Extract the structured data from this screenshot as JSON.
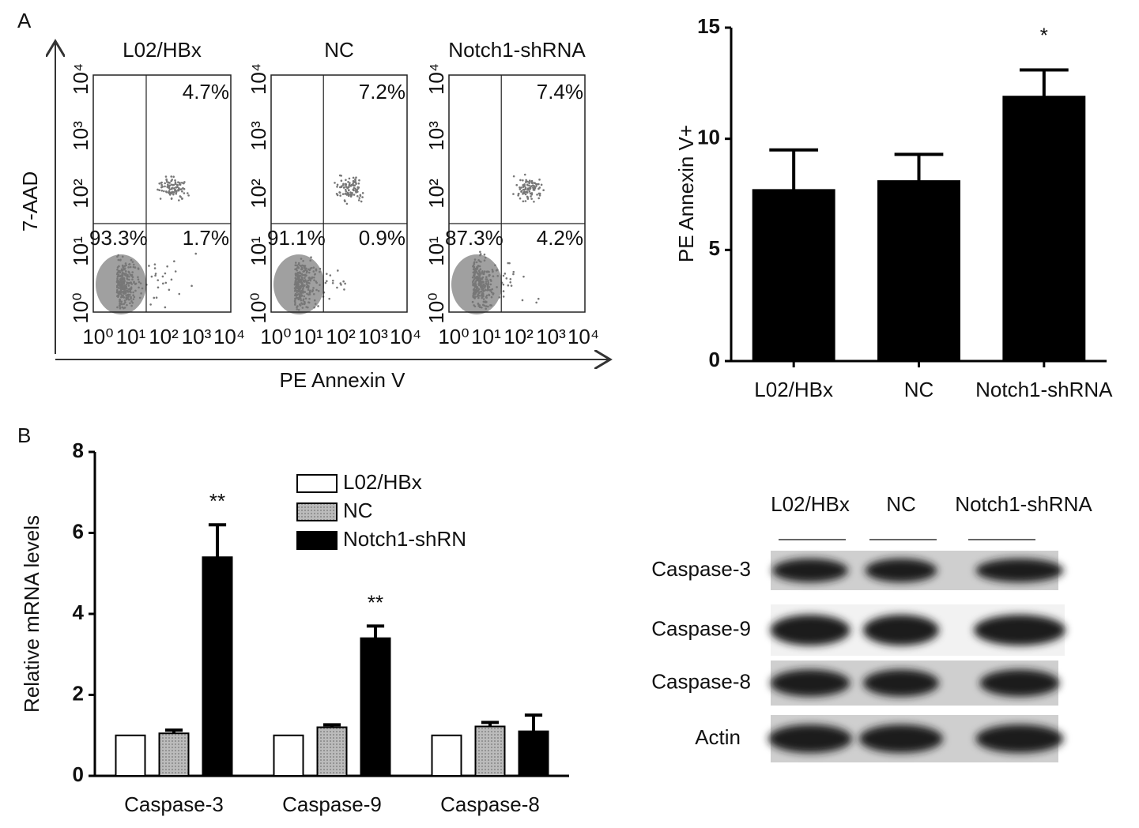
{
  "panel_labels": [
    "A",
    "B"
  ],
  "flow_cytometry": {
    "x_label": "PE Annexin V",
    "y_label": "7-AAD",
    "ticks": [
      "10⁰",
      "10¹",
      "10²",
      "10³",
      "10⁴"
    ],
    "plots": [
      {
        "title": "L02/HBx",
        "upper_right": "4.7%",
        "lower_left": "93.3%",
        "lower_right": "1.7%"
      },
      {
        "title": "NC",
        "upper_right": "7.2%",
        "lower_left": "91.1%",
        "lower_right": "0.9%"
      },
      {
        "title": "Notch1-shRNA",
        "upper_right": "7.4%",
        "lower_left": "87.3%",
        "lower_right": "4.2%"
      }
    ]
  },
  "chart_data": [
    {
      "type": "bar",
      "y_label": "PE Annexin V+",
      "categories": [
        "L02/HBx",
        "NC",
        "Notch1-shRNA"
      ],
      "values": [
        7.7,
        8.1,
        11.9
      ],
      "errors": [
        1.8,
        1.2,
        1.2
      ],
      "significance": [
        null,
        null,
        "*"
      ],
      "color": "#000000",
      "ylim": [
        0,
        15
      ],
      "yticks": [
        0,
        5,
        10,
        15
      ]
    },
    {
      "type": "grouped_bar",
      "y_label": "Relative mRNA levels",
      "categories": [
        "Caspase-3",
        "Caspase-9",
        "Caspase-8"
      ],
      "series": [
        {
          "name": "L02/HBx",
          "color": "#ffffff",
          "values": [
            1,
            1,
            1
          ]
        },
        {
          "name": "NC",
          "color": "#aaaaaa",
          "values": [
            1.05,
            1.2,
            1.22
          ],
          "errors": [
            0.08,
            0.06,
            0.1
          ]
        },
        {
          "name": "Notch1-shRN",
          "color": "#000000",
          "values": [
            5.4,
            3.4,
            1.1
          ],
          "errors": [
            0.8,
            0.3,
            0.4
          ]
        }
      ],
      "significance": [
        "**",
        "**",
        null
      ],
      "ylim": [
        0,
        8
      ],
      "yticks": [
        0,
        2,
        4,
        6,
        8
      ],
      "legend": "upper-center"
    }
  ],
  "western_blot": {
    "columns": [
      "L02/HBx",
      "NC",
      "Notch1-shRNA"
    ],
    "rows": [
      "Caspase-3",
      "Caspase-9",
      "Caspase-8",
      "Actin"
    ]
  }
}
